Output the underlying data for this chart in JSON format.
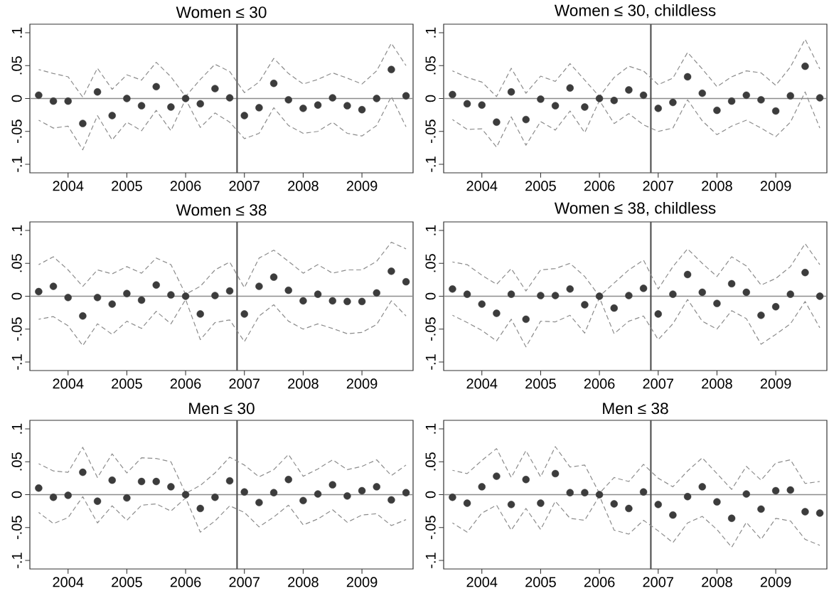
{
  "chart_data": [
    {
      "type": "scatter",
      "title": "Women ≤ 30",
      "x": [
        2003.5,
        2003.75,
        2004,
        2004.25,
        2004.5,
        2004.75,
        2005,
        2005.25,
        2005.5,
        2005.75,
        2006,
        2006.25,
        2006.5,
        2006.75,
        2007,
        2007.25,
        2007.5,
        2007.75,
        2008,
        2008.25,
        2008.5,
        2008.75,
        2009,
        2009.25,
        2009.5,
        2009.75
      ],
      "xlim": [
        2003.35,
        2009.87
      ],
      "ylim": [
        -0.113,
        0.113
      ],
      "xticks": [
        2004,
        2005,
        2006,
        2007,
        2008,
        2009
      ],
      "yticks": [
        {
          "value": -0.1,
          "label": "-.1"
        },
        {
          "value": -0.05,
          "label": "-.05"
        },
        {
          "value": 0,
          "label": "0"
        },
        {
          "value": 0.05,
          "label": ".05"
        },
        {
          "value": 0.1,
          "label": ".1"
        }
      ],
      "ref_lines": [
        {
          "axis": "y",
          "value": 0,
          "color": "#8c8c8c"
        },
        {
          "axis": "x",
          "value": 2006.875,
          "color": "#505050"
        }
      ],
      "series": [
        {
          "type": "line",
          "line_style": "dashed",
          "color": "#8c8c8c",
          "values": [
            0.044,
            0.038,
            0.033,
            0.002,
            0.046,
            0.014,
            0.036,
            0.028,
            0.055,
            0.033,
            0.003,
            0.029,
            0.052,
            0.041,
            0.009,
            0.025,
            0.061,
            0.038,
            0.022,
            0.029,
            0.039,
            0.031,
            0.022,
            0.042,
            0.084,
            0.05
          ]
        },
        {
          "type": "line",
          "line_style": "dashed",
          "color": "#8c8c8c",
          "values": [
            -0.033,
            -0.045,
            -0.042,
            -0.078,
            -0.026,
            -0.063,
            -0.036,
            -0.049,
            -0.018,
            -0.049,
            -0.001,
            -0.044,
            -0.022,
            -0.036,
            -0.061,
            -0.053,
            -0.014,
            -0.041,
            -0.053,
            -0.05,
            -0.036,
            -0.053,
            -0.057,
            -0.041,
            0.003,
            -0.043
          ]
        },
        {
          "type": "scatter",
          "marker": "circle",
          "color": "#3c3c3c",
          "values": [
            0.005,
            -0.004,
            -0.004,
            -0.038,
            0.01,
            -0.026,
            0,
            -0.011,
            0.018,
            -0.013,
            0,
            -0.008,
            0.015,
            0.001,
            -0.026,
            -0.014,
            0.023,
            -0.002,
            -0.015,
            -0.01,
            0.001,
            -0.011,
            -0.017,
            0,
            0.044,
            0.004
          ]
        }
      ]
    },
    {
      "type": "scatter",
      "title": "Women ≤ 30, childless",
      "x": [
        2003.5,
        2003.75,
        2004,
        2004.25,
        2004.5,
        2004.75,
        2005,
        2005.25,
        2005.5,
        2005.75,
        2006,
        2006.25,
        2006.5,
        2006.75,
        2007,
        2007.25,
        2007.5,
        2007.75,
        2008,
        2008.25,
        2008.5,
        2008.75,
        2009,
        2009.25,
        2009.5,
        2009.75
      ],
      "xlim": [
        2003.35,
        2009.87
      ],
      "ylim": [
        -0.113,
        0.113
      ],
      "xticks": [
        2004,
        2005,
        2006,
        2007,
        2008,
        2009
      ],
      "yticks": [
        {
          "value": -0.1,
          "label": "-.1"
        },
        {
          "value": -0.05,
          "label": "-.05"
        },
        {
          "value": 0,
          "label": "0"
        },
        {
          "value": 0.05,
          "label": ".05"
        },
        {
          "value": 0.1,
          "label": ".1"
        }
      ],
      "ref_lines": [
        {
          "axis": "y",
          "value": 0,
          "color": "#8c8c8c"
        },
        {
          "axis": "x",
          "value": 2006.875,
          "color": "#505050"
        }
      ],
      "series": [
        {
          "type": "line",
          "line_style": "dashed",
          "color": "#8c8c8c",
          "values": [
            0.042,
            0.032,
            0.025,
            0.003,
            0.046,
            0.008,
            0.034,
            0.026,
            0.053,
            0.028,
            0.003,
            0.032,
            0.049,
            0.042,
            0.021,
            0.031,
            0.07,
            0.045,
            0.018,
            0.033,
            0.042,
            0.039,
            0.02,
            0.048,
            0.09,
            0.045
          ]
        },
        {
          "type": "line",
          "line_style": "dashed",
          "color": "#8c8c8c",
          "values": [
            -0.032,
            -0.047,
            -0.046,
            -0.074,
            -0.028,
            -0.071,
            -0.035,
            -0.048,
            -0.019,
            -0.052,
            -0.003,
            -0.038,
            -0.023,
            -0.04,
            -0.05,
            -0.045,
            -0.002,
            -0.034,
            -0.055,
            -0.042,
            -0.033,
            -0.045,
            -0.058,
            -0.036,
            0.01,
            -0.045
          ]
        },
        {
          "type": "scatter",
          "marker": "circle",
          "color": "#3c3c3c",
          "values": [
            0.006,
            -0.008,
            -0.01,
            -0.036,
            0.01,
            -0.032,
            -0.001,
            -0.011,
            0.016,
            -0.013,
            0,
            -0.003,
            0.013,
            0.005,
            -0.015,
            -0.006,
            0.033,
            0.008,
            -0.018,
            -0.004,
            0.005,
            -0.002,
            -0.019,
            0.004,
            0.049,
            0.001
          ]
        }
      ]
    },
    {
      "type": "scatter",
      "title": "Women ≤ 38",
      "x": [
        2003.5,
        2003.75,
        2004,
        2004.25,
        2004.5,
        2004.75,
        2005,
        2005.25,
        2005.5,
        2005.75,
        2006,
        2006.25,
        2006.5,
        2006.75,
        2007,
        2007.25,
        2007.5,
        2007.75,
        2008,
        2008.25,
        2008.5,
        2008.75,
        2009,
        2009.25,
        2009.5,
        2009.75
      ],
      "xlim": [
        2003.35,
        2009.87
      ],
      "ylim": [
        -0.113,
        0.113
      ],
      "xticks": [
        2004,
        2005,
        2006,
        2007,
        2008,
        2009
      ],
      "yticks": [
        {
          "value": -0.1,
          "label": "-.1"
        },
        {
          "value": -0.05,
          "label": "-.05"
        },
        {
          "value": 0,
          "label": "0"
        },
        {
          "value": 0.05,
          "label": ".05"
        },
        {
          "value": 0.1,
          "label": ".1"
        }
      ],
      "ref_lines": [
        {
          "axis": "y",
          "value": 0,
          "color": "#8c8c8c"
        },
        {
          "axis": "x",
          "value": 2006.875,
          "color": "#505050"
        }
      ],
      "series": [
        {
          "type": "line",
          "line_style": "dashed",
          "color": "#8c8c8c",
          "values": [
            0.048,
            0.06,
            0.04,
            0.015,
            0.04,
            0.034,
            0.045,
            0.035,
            0.058,
            0.048,
            0.003,
            0.015,
            0.04,
            0.052,
            0.013,
            0.058,
            0.07,
            0.053,
            0.035,
            0.048,
            0.035,
            0.04,
            0.04,
            0.053,
            0.082,
            0.072
          ]
        },
        {
          "type": "line",
          "line_style": "dashed",
          "color": "#8c8c8c",
          "values": [
            -0.035,
            -0.031,
            -0.045,
            -0.075,
            -0.042,
            -0.058,
            -0.038,
            -0.049,
            -0.023,
            -0.042,
            -0.005,
            -0.066,
            -0.04,
            -0.036,
            -0.069,
            -0.03,
            -0.013,
            -0.038,
            -0.05,
            -0.042,
            -0.049,
            -0.057,
            -0.055,
            -0.043,
            -0.007,
            -0.03
          ]
        },
        {
          "type": "scatter",
          "marker": "circle",
          "color": "#3c3c3c",
          "values": [
            0.007,
            0.015,
            -0.002,
            -0.03,
            -0.002,
            -0.012,
            0.004,
            -0.006,
            0.017,
            0.002,
            0,
            -0.027,
            0.001,
            0.008,
            -0.027,
            0.015,
            0.029,
            0.009,
            -0.007,
            0.003,
            -0.007,
            -0.008,
            -0.008,
            0.005,
            0.038,
            0.022
          ]
        }
      ]
    },
    {
      "type": "scatter",
      "title": "Women ≤ 38, childless",
      "x": [
        2003.5,
        2003.75,
        2004,
        2004.25,
        2004.5,
        2004.75,
        2005,
        2005.25,
        2005.5,
        2005.75,
        2006,
        2006.25,
        2006.5,
        2006.75,
        2007,
        2007.25,
        2007.5,
        2007.75,
        2008,
        2008.25,
        2008.5,
        2008.75,
        2009,
        2009.25,
        2009.5,
        2009.75
      ],
      "xlim": [
        2003.35,
        2009.87
      ],
      "ylim": [
        -0.113,
        0.113
      ],
      "xticks": [
        2004,
        2005,
        2006,
        2007,
        2008,
        2009
      ],
      "yticks": [
        {
          "value": -0.1,
          "label": "-.1"
        },
        {
          "value": -0.05,
          "label": "-.05"
        },
        {
          "value": 0,
          "label": "0"
        },
        {
          "value": 0.05,
          "label": ".05"
        },
        {
          "value": 0.1,
          "label": ".1"
        }
      ],
      "ref_lines": [
        {
          "axis": "y",
          "value": 0,
          "color": "#8c8c8c"
        },
        {
          "axis": "x",
          "value": 2006.875,
          "color": "#505050"
        }
      ],
      "series": [
        {
          "type": "line",
          "line_style": "dashed",
          "color": "#8c8c8c",
          "values": [
            0.052,
            0.048,
            0.032,
            0.018,
            0.042,
            0.008,
            0.04,
            0.042,
            0.05,
            0.03,
            0,
            0.02,
            0.04,
            0.055,
            0.011,
            0.045,
            0.072,
            0.05,
            0.03,
            0.06,
            0.046,
            0.017,
            0.027,
            0.045,
            0.08,
            0.048
          ]
        },
        {
          "type": "line",
          "line_style": "dashed",
          "color": "#8c8c8c",
          "values": [
            -0.029,
            -0.04,
            -0.052,
            -0.068,
            -0.035,
            -0.077,
            -0.038,
            -0.039,
            -0.029,
            -0.056,
            -0.002,
            -0.057,
            -0.038,
            -0.03,
            -0.066,
            -0.042,
            -0.005,
            -0.038,
            -0.05,
            -0.022,
            -0.034,
            -0.073,
            -0.058,
            -0.042,
            -0.008,
            -0.048
          ]
        },
        {
          "type": "scatter",
          "marker": "circle",
          "color": "#3c3c3c",
          "values": [
            0.011,
            0.003,
            -0.012,
            -0.026,
            0.003,
            -0.035,
            0.001,
            0.001,
            0.011,
            -0.013,
            0,
            -0.018,
            0.001,
            0.012,
            -0.027,
            0.003,
            0.033,
            0.006,
            -0.011,
            0.019,
            0.006,
            -0.029,
            -0.016,
            0.003,
            0.036,
            0
          ]
        }
      ]
    },
    {
      "type": "scatter",
      "title": "Men ≤ 30",
      "x": [
        2003.5,
        2003.75,
        2004,
        2004.25,
        2004.5,
        2004.75,
        2005,
        2005.25,
        2005.5,
        2005.75,
        2006,
        2006.25,
        2006.5,
        2006.75,
        2007,
        2007.25,
        2007.5,
        2007.75,
        2008,
        2008.25,
        2008.5,
        2008.75,
        2009,
        2009.25,
        2009.5,
        2009.75
      ],
      "xlim": [
        2003.35,
        2009.87
      ],
      "ylim": [
        -0.113,
        0.113
      ],
      "xticks": [
        2004,
        2005,
        2006,
        2007,
        2008,
        2009
      ],
      "yticks": [
        {
          "value": -0.1,
          "label": "-.1"
        },
        {
          "value": -0.05,
          "label": "-.05"
        },
        {
          "value": 0,
          "label": "0"
        },
        {
          "value": 0.05,
          "label": ".05"
        },
        {
          "value": 0.1,
          "label": ".1"
        }
      ],
      "ref_lines": [
        {
          "axis": "y",
          "value": 0,
          "color": "#8c8c8c"
        },
        {
          "axis": "x",
          "value": 2006.875,
          "color": "#505050"
        }
      ],
      "series": [
        {
          "type": "line",
          "line_style": "dashed",
          "color": "#8c8c8c",
          "values": [
            0.047,
            0.036,
            0.034,
            0.072,
            0.026,
            0.062,
            0.033,
            0.056,
            0.055,
            0.05,
            0.002,
            0.014,
            0.033,
            0.057,
            0.045,
            0.027,
            0.038,
            0.061,
            0.028,
            0.039,
            0.053,
            0.038,
            0.043,
            0.053,
            0.029,
            0.045
          ]
        },
        {
          "type": "line",
          "line_style": "dashed",
          "color": "#8c8c8c",
          "values": [
            -0.027,
            -0.044,
            -0.035,
            -0.003,
            -0.043,
            -0.017,
            -0.039,
            -0.016,
            -0.014,
            -0.025,
            -0.005,
            -0.057,
            -0.04,
            -0.017,
            -0.027,
            -0.049,
            -0.034,
            -0.016,
            -0.046,
            -0.037,
            -0.023,
            -0.042,
            -0.031,
            -0.029,
            -0.047,
            -0.038
          ]
        },
        {
          "type": "scatter",
          "marker": "circle",
          "color": "#3c3c3c",
          "values": [
            0.01,
            -0.004,
            -0.001,
            0.034,
            -0.01,
            0.022,
            -0.005,
            0.02,
            0.02,
            0.012,
            0,
            -0.021,
            -0.004,
            0.021,
            0.004,
            -0.012,
            0.003,
            0.023,
            -0.009,
            0.001,
            0.015,
            -0.002,
            0.006,
            0.012,
            -0.008,
            0.003
          ]
        }
      ]
    },
    {
      "type": "scatter",
      "title": "Men ≤ 38",
      "x": [
        2003.5,
        2003.75,
        2004,
        2004.25,
        2004.5,
        2004.75,
        2005,
        2005.25,
        2005.5,
        2005.75,
        2006,
        2006.25,
        2006.5,
        2006.75,
        2007,
        2007.25,
        2007.5,
        2007.75,
        2008,
        2008.25,
        2008.5,
        2008.75,
        2009,
        2009.25,
        2009.5,
        2009.75
      ],
      "xlim": [
        2003.35,
        2009.87
      ],
      "ylim": [
        -0.113,
        0.113
      ],
      "xticks": [
        2004,
        2005,
        2006,
        2007,
        2008,
        2009
      ],
      "yticks": [
        {
          "value": -0.1,
          "label": "-.1"
        },
        {
          "value": -0.05,
          "label": "-.05"
        },
        {
          "value": 0,
          "label": "0"
        },
        {
          "value": 0.05,
          "label": ".05"
        },
        {
          "value": 0.1,
          "label": ".1"
        }
      ],
      "ref_lines": [
        {
          "axis": "y",
          "value": 0,
          "color": "#8c8c8c"
        },
        {
          "axis": "x",
          "value": 2006.875,
          "color": "#505050"
        }
      ],
      "series": [
        {
          "type": "line",
          "line_style": "dashed",
          "color": "#8c8c8c",
          "values": [
            0.037,
            0.032,
            0.052,
            0.07,
            0.026,
            0.067,
            0.027,
            0.073,
            0.042,
            0.045,
            0.002,
            0.026,
            0.02,
            0.046,
            0.025,
            0.012,
            0.036,
            0.056,
            0.032,
            0.008,
            0.043,
            0.022,
            0.048,
            0.053,
            0.017,
            0.02
          ]
        },
        {
          "type": "line",
          "line_style": "dashed",
          "color": "#8c8c8c",
          "values": [
            -0.043,
            -0.057,
            -0.028,
            -0.016,
            -0.054,
            -0.021,
            -0.053,
            -0.01,
            -0.036,
            -0.039,
            -0.002,
            -0.054,
            -0.06,
            -0.039,
            -0.055,
            -0.073,
            -0.043,
            -0.033,
            -0.053,
            -0.08,
            -0.042,
            -0.068,
            -0.036,
            -0.04,
            -0.068,
            -0.077
          ]
        },
        {
          "type": "scatter",
          "marker": "circle",
          "color": "#3c3c3c",
          "values": [
            -0.004,
            -0.013,
            0.012,
            0.028,
            -0.015,
            0.023,
            -0.013,
            0.032,
            0.003,
            0.003,
            0,
            -0.014,
            -0.021,
            0.004,
            -0.015,
            -0.031,
            -0.003,
            0.012,
            -0.011,
            -0.036,
            0.001,
            -0.022,
            0.006,
            0.007,
            -0.026,
            -0.028
          ]
        }
      ]
    }
  ]
}
